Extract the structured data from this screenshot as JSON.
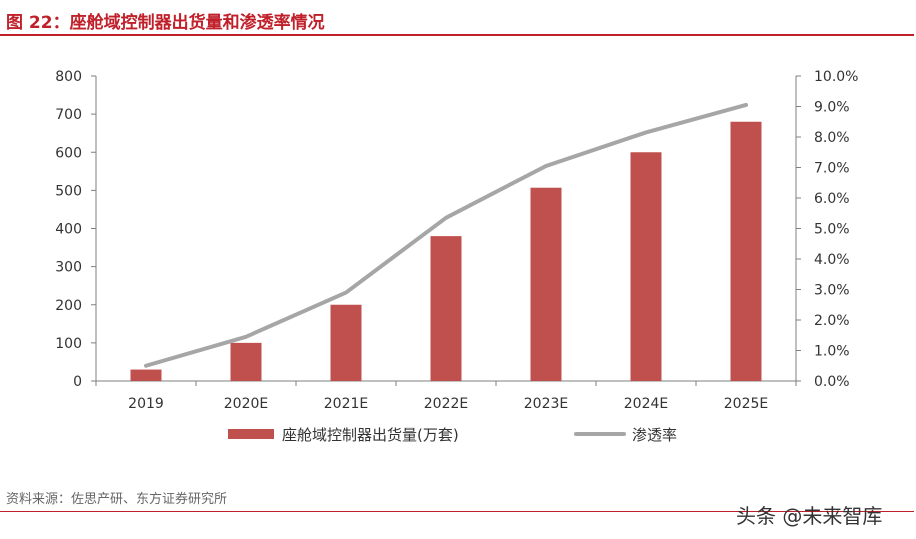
{
  "figure": {
    "title": "图 22：座舱域控制器出货量和渗透率情况",
    "source": "资料来源：佐思产研、东方证券研究所",
    "watermark": "头条 @未来智库"
  },
  "colors": {
    "accent": "#c0202a",
    "bar": "#c0504d",
    "line": "#a6a6a6"
  },
  "chart_data": {
    "type": "bar",
    "categories": [
      "2019",
      "2020E",
      "2021E",
      "2022E",
      "2023E",
      "2024E",
      "2025E"
    ],
    "series": [
      {
        "name": "座舱域控制器出货量(万套)",
        "type": "bar",
        "axis": "left",
        "values": [
          30,
          100,
          200,
          380,
          507,
          600,
          680
        ]
      },
      {
        "name": "渗透率",
        "type": "line",
        "axis": "right",
        "values": [
          0.5,
          1.45,
          2.9,
          5.35,
          7.05,
          8.15,
          9.05
        ]
      }
    ],
    "y_left": {
      "min": 0,
      "max": 800,
      "ticks": [
        "0",
        "100",
        "200",
        "300",
        "400",
        "500",
        "600",
        "700",
        "800"
      ]
    },
    "y_right": {
      "min": 0,
      "max": 10,
      "ticks": [
        "0.0%",
        "1.0%",
        "2.0%",
        "3.0%",
        "4.0%",
        "5.0%",
        "6.0%",
        "7.0%",
        "8.0%",
        "9.0%",
        "10.0%"
      ]
    },
    "legend": "bottom",
    "grid": false
  }
}
